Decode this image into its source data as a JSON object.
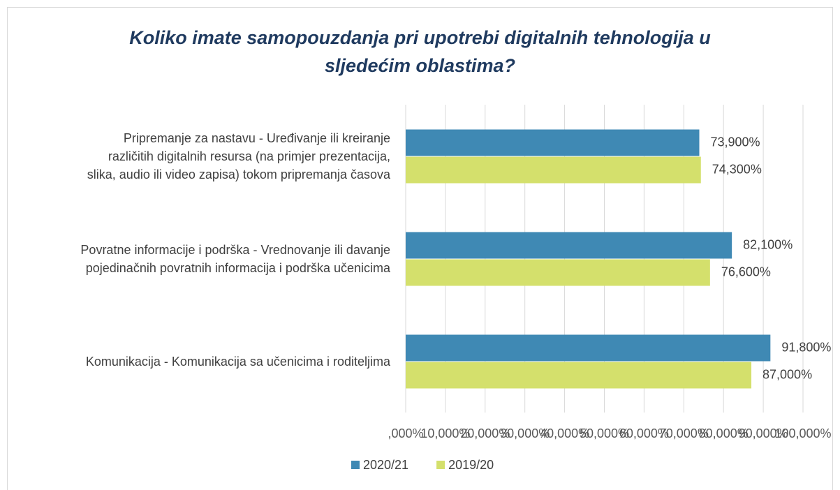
{
  "chart_data": {
    "type": "barh",
    "title": "Koliko imate samopouzdanja pri upotrebi digitalnih tehnologija u\nsljedećim oblastima?",
    "categories": [
      "Pripremanje za nastavu - Uređivanje ili kreiranje\nrazličitih digitalnih resursa (na primjer prezentacija,\nslika, audio ili video zapisa) tokom pripremanja časova",
      "Povratne informacije i podrška - Vrednovanje ili davanje\npojedinačnih povratnih informacija i podrška učenicima",
      "Komunikacija - Komunikacija sa učenicima i roditeljima"
    ],
    "series": [
      {
        "name": "2020/21",
        "color": "#3f89b4",
        "values": [
          73.9,
          82.1,
          91.8
        ],
        "value_labels": [
          "73,900%",
          "82,100%",
          "91,800%"
        ]
      },
      {
        "name": "2019/20",
        "color": "#d4e06c",
        "values": [
          74.3,
          76.6,
          87.0
        ],
        "value_labels": [
          "74,300%",
          "76,600%",
          "87,000%"
        ]
      }
    ],
    "xlim": [
      0,
      100
    ],
    "xticks": [
      {
        "value": 0,
        "label": ",000%"
      },
      {
        "value": 10,
        "label": "10,000%"
      },
      {
        "value": 20,
        "label": "20,000%"
      },
      {
        "value": 30,
        "label": "30,000%"
      },
      {
        "value": 40,
        "label": "40,000%"
      },
      {
        "value": 50,
        "label": "50,000%"
      },
      {
        "value": 60,
        "label": "60,000%"
      },
      {
        "value": 70,
        "label": "70,000%"
      },
      {
        "value": 80,
        "label": "80,000%"
      },
      {
        "value": 90,
        "label": "90,000%"
      },
      {
        "value": 100,
        "label": "100,000%"
      }
    ],
    "grid": true,
    "legend": "bottom"
  }
}
